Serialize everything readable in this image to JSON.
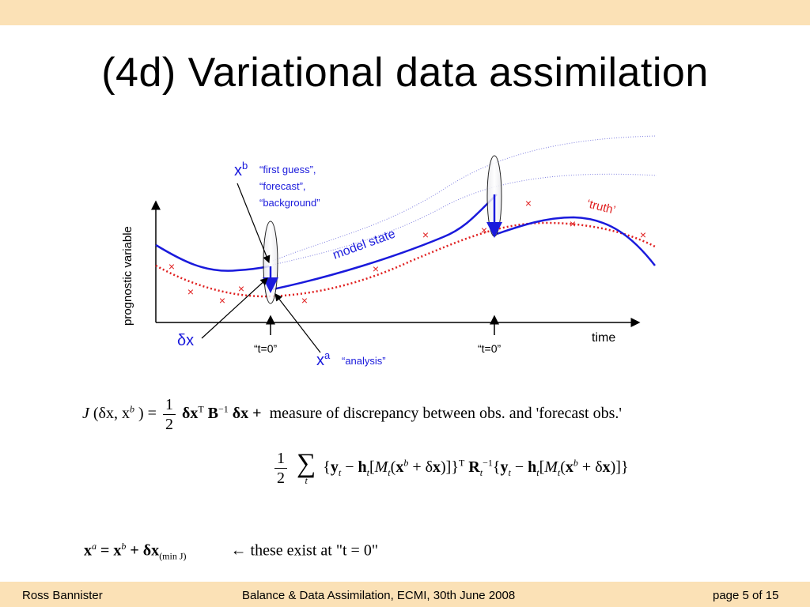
{
  "slide": {
    "title": "(4d) Variational data assimilation",
    "footer": {
      "author": "Ross Bannister",
      "event": "Balance & Data Assimilation, ECMI, 30th June 2008",
      "page": "page 5 of 15"
    }
  },
  "diagram": {
    "y_axis_label": "prognostic variable",
    "x_axis_label": "time",
    "model_state_label": "model state",
    "truth_label": "‘truth’",
    "xb_symbol": "x",
    "xb_sup": "b",
    "xb_desc_1": "“first guess”,",
    "xb_desc_2": "“forecast”,",
    "xb_desc_3": "“background”",
    "xa_symbol": "x",
    "xa_sup": "a",
    "xa_desc": "“analysis”",
    "dx_label": "δx",
    "t0_label_1": "“t=0”",
    "t0_label_2": "“t=0”",
    "obs_marker": "×",
    "colors": {
      "model": "#1a1adc",
      "truth": "#e02020",
      "obs": "#e02020",
      "band": "#fbe1b6",
      "guide": "#7a7ae0"
    }
  },
  "equations": {
    "cost": {
      "J": "J",
      "args": "(δx, x",
      "args_sup": "b",
      "args_close": ")",
      "eq": "=",
      "half_num": "1",
      "half_den": "2",
      "term1": "δx",
      "term1_sup": "T",
      "B": "B",
      "B_sup": "−1",
      "term1_end": "δx +",
      "caption": "measure of discrepancy between obs. and 'forecast obs.'"
    },
    "obs_term": {
      "half_num": "1",
      "half_den": "2",
      "sum": "∑",
      "sum_sub": "t",
      "text": "{y_t − h_t[M_t(x^b + δx)]}^T R_t^−1 {y_t − h_t[M_t(x^b + δx)]}"
    },
    "analysis": {
      "lhs": "x",
      "lhs_sup": "a",
      "rhs": "= x",
      "rhs_sup": "b",
      "plus": "+ δx",
      "sub": "(min J)",
      "arrow_text": "←  these exist at \"t = 0\""
    }
  }
}
